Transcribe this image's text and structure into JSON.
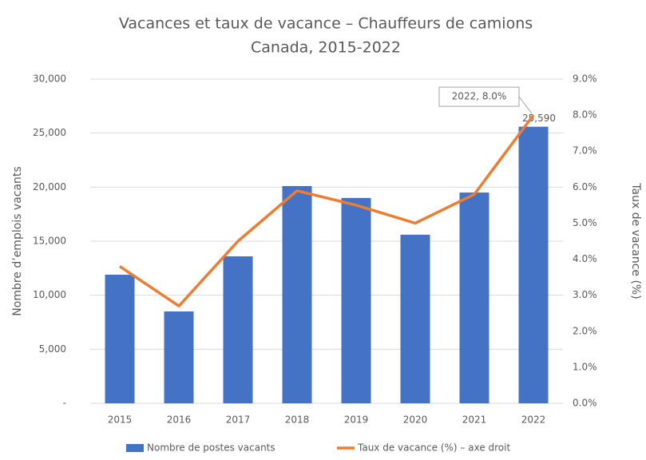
{
  "chart_data": {
    "type": "bar",
    "title": "Vacances et taux de vacance – Chauffeurs de camions",
    "subtitle": "Canada, 2015-2022",
    "y_label": "Nombre d’emplois vacants",
    "y2_label": "Taux de vacance (%)",
    "categories": [
      "2015",
      "2016",
      "2017",
      "2018",
      "2019",
      "2020",
      "2021",
      "2022"
    ],
    "series": [
      {
        "name": "Nombre de postes vacants",
        "type": "bar",
        "color": "#4472c4",
        "values": [
          11900,
          8500,
          13600,
          20100,
          19000,
          15600,
          19500,
          25590
        ],
        "value_labels": [
          null,
          null,
          null,
          null,
          null,
          null,
          null,
          "25,590"
        ]
      },
      {
        "name": "Taux de vacance (%) – axe droit",
        "type": "line",
        "axis": "y2",
        "color": "#ed7d31",
        "values": [
          3.8,
          2.7,
          4.5,
          5.9,
          5.5,
          5.0,
          5.8,
          8.0
        ],
        "value_labels": [
          null,
          null,
          null,
          null,
          null,
          null,
          null,
          "2022, 8.0%"
        ]
      }
    ],
    "ylim": [
      0,
      30000
    ],
    "yticks": [
      {
        "value": 0,
        "label": "-"
      },
      {
        "value": 5000,
        "label": "5,000"
      },
      {
        "value": 10000,
        "label": "10,000"
      },
      {
        "value": 15000,
        "label": "15,000"
      },
      {
        "value": 20000,
        "label": "20,000"
      },
      {
        "value": 25000,
        "label": "25,000"
      },
      {
        "value": 30000,
        "label": "30,000"
      }
    ],
    "y2lim": [
      0,
      9
    ],
    "y2ticks": [
      {
        "value": 0,
        "label": "0.0%"
      },
      {
        "value": 1,
        "label": "1.0%"
      },
      {
        "value": 2,
        "label": "2.0%"
      },
      {
        "value": 3,
        "label": "3.0%"
      },
      {
        "value": 4,
        "label": "4.0%"
      },
      {
        "value": 5,
        "label": "5.0%"
      },
      {
        "value": 6,
        "label": "6.0%"
      },
      {
        "value": 7,
        "label": "7.0%"
      },
      {
        "value": 8,
        "label": "8.0%"
      },
      {
        "value": 9,
        "label": "9.0%"
      }
    ],
    "grid": true,
    "legend": "bottom"
  }
}
